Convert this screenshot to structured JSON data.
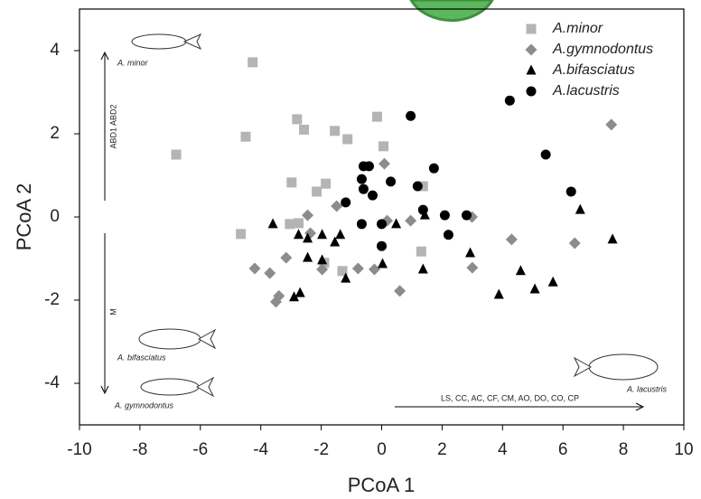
{
  "chart_data": {
    "type": "scatter",
    "x_label": "PCoA 1",
    "y_label": "PCoA 2",
    "xlim": [
      -10,
      10
    ],
    "ylim": [
      -5,
      5
    ],
    "xticks": [
      -10,
      -8,
      -6,
      -4,
      -2,
      0,
      2,
      4,
      6,
      8,
      10
    ],
    "yticks": [
      -4,
      -2,
      0,
      2,
      4
    ],
    "grid": false,
    "legend": "top-right",
    "annotations": [
      "A. minor",
      "ABD1  ABD2",
      "M",
      "A. bifasciatus",
      "A. gymnodontus",
      "A. lacustris",
      "LS, CC, AC, CF, CM, AO, DO, CO, CP"
    ],
    "series": [
      {
        "name": "A.minor",
        "color": "#b4b4b4",
        "marker": "square",
        "x": [
          -6.8,
          -4.27,
          -4.5,
          -2.8,
          -2.57,
          -1.55,
          -1.13,
          -0.15,
          0.06,
          -2.98,
          -1.85,
          -2.15,
          -3.04,
          -2.75,
          -4.66,
          1.37,
          1.31,
          -1.3,
          -1.9
        ],
        "y": [
          1.5,
          3.72,
          1.93,
          2.35,
          2.1,
          2.07,
          1.87,
          2.41,
          1.7,
          0.83,
          0.8,
          0.61,
          -0.17,
          -0.15,
          -0.41,
          0.74,
          -0.83,
          -1.3,
          -1.1
        ]
      },
      {
        "name": "A.gymnodontus",
        "color": "#8c8c8c",
        "marker": "diamond",
        "x": [
          -4.2,
          -3.7,
          -3.5,
          -3.4,
          -3.16,
          -2.45,
          -2.36,
          -1.97,
          -1.49,
          -0.78,
          -0.24,
          0.09,
          0.18,
          0.6,
          0.96,
          2.99,
          3.0,
          4.3,
          6.39,
          7.6
        ],
        "y": [
          -1.24,
          -1.35,
          -2.04,
          -1.9,
          -0.98,
          0.04,
          -0.39,
          -1.26,
          0.26,
          -1.24,
          -1.26,
          1.28,
          -0.09,
          -1.78,
          -0.09,
          0.0,
          -1.22,
          -0.54,
          -0.63,
          2.22
        ]
      },
      {
        "name": "A.bifasciatus",
        "color": "#000000",
        "marker": "triangle",
        "x": [
          -3.6,
          -2.9,
          -2.7,
          -2.75,
          -2.45,
          -2.45,
          -1.97,
          -1.97,
          -1.19,
          -1.55,
          -1.37,
          0.03,
          0.48,
          1.37,
          1.43,
          2.93,
          3.88,
          4.6,
          5.07,
          5.67,
          6.57,
          7.64
        ],
        "y": [
          -0.17,
          -1.93,
          -1.83,
          -0.43,
          -0.52,
          -0.98,
          -1.04,
          -0.43,
          -1.48,
          -0.61,
          -0.43,
          -1.13,
          -0.17,
          -1.26,
          0.04,
          -0.87,
          -1.87,
          -1.3,
          -1.74,
          -1.57,
          0.17,
          -0.54
        ]
      },
      {
        "name": "A.lacustris",
        "color": "#000000",
        "marker": "circle",
        "x": [
          0.96,
          4.24,
          5.43,
          6.27,
          1.73,
          1.37,
          2.09,
          2.21,
          2.81,
          -0.66,
          -0.6,
          -0.42,
          -0.6,
          -0.3,
          0.3,
          1.19,
          -1.19,
          -0.66,
          0.0,
          0.0
        ],
        "y": [
          2.43,
          2.8,
          1.5,
          0.61,
          1.17,
          0.17,
          0.04,
          -0.43,
          0.04,
          0.91,
          1.22,
          1.22,
          0.67,
          0.52,
          0.85,
          0.74,
          0.35,
          -0.17,
          -0.7,
          -0.17
        ]
      }
    ]
  }
}
